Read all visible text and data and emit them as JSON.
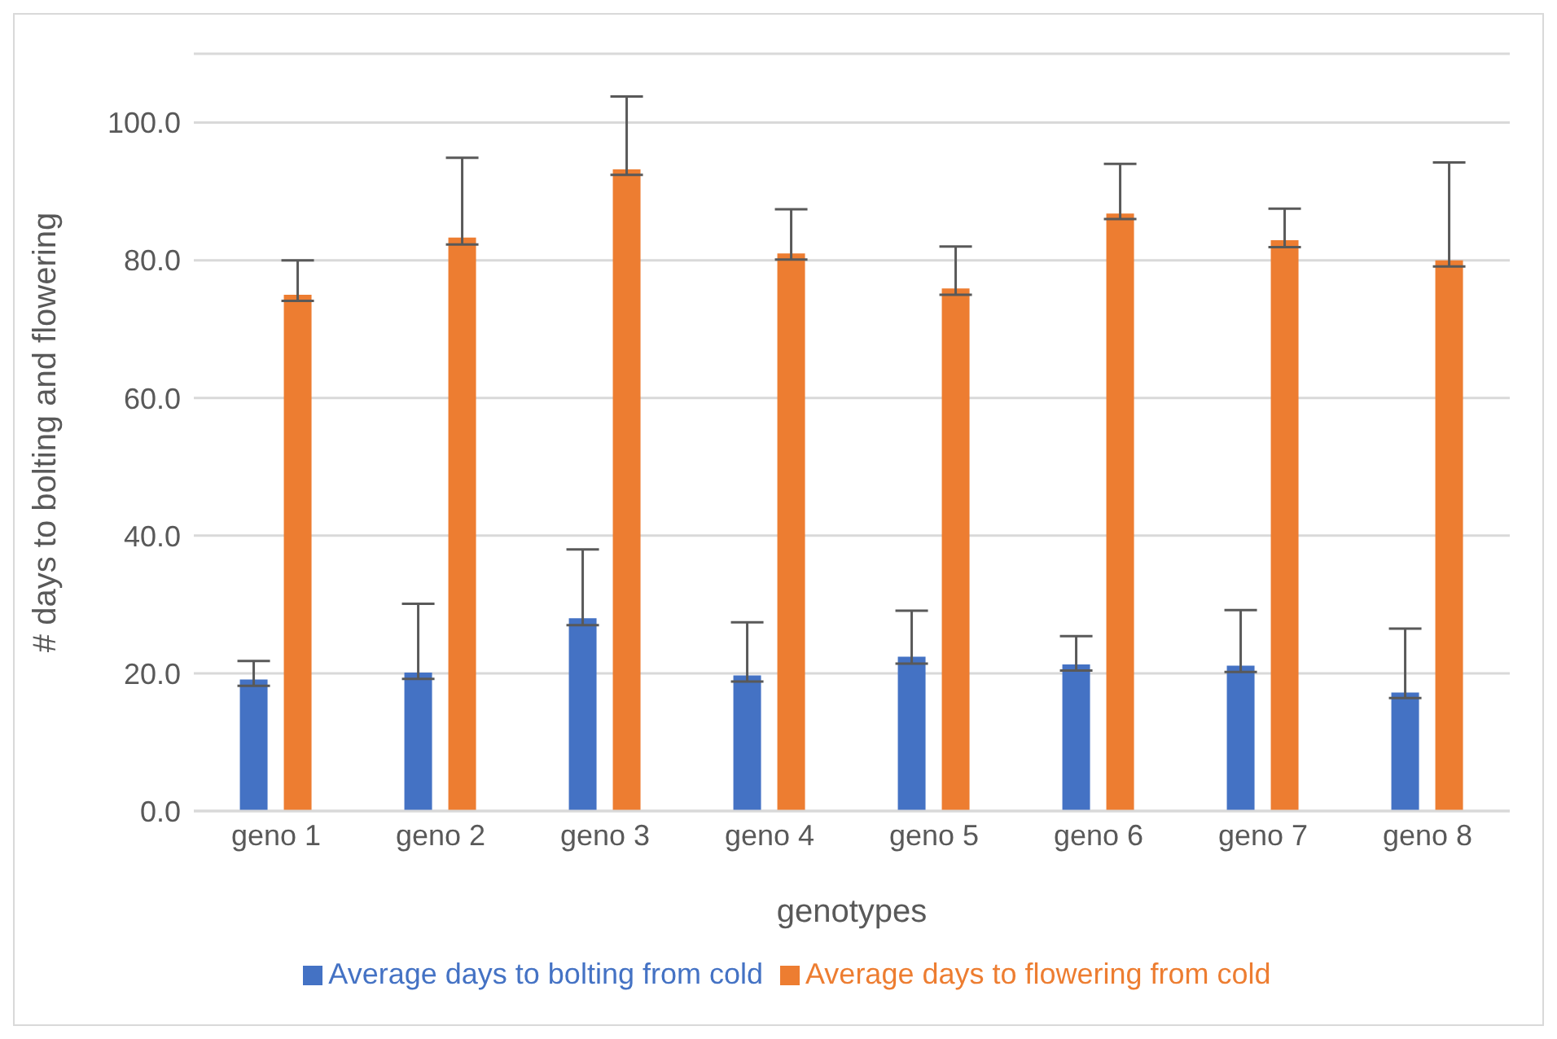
{
  "chart_data": {
    "type": "bar",
    "xlabel": "genotypes",
    "ylabel": "# days to bolting and flowering",
    "categories": [
      "geno 1",
      "geno 2",
      "geno 3",
      "geno 4",
      "geno 5",
      "geno 6",
      "geno 7",
      "geno 8"
    ],
    "series": [
      {
        "name": "Average days to bolting from cold",
        "color": "#4472c4",
        "values": [
          19.1,
          20.1,
          28.0,
          19.7,
          22.4,
          21.3,
          21.1,
          17.2
        ],
        "errors": [
          [
            18.2,
            21.8
          ],
          [
            19.2,
            30.1
          ],
          [
            27.0,
            38.0
          ],
          [
            18.8,
            27.4
          ],
          [
            21.4,
            29.1
          ],
          [
            20.4,
            25.4
          ],
          [
            20.2,
            29.2
          ],
          [
            16.4,
            26.5
          ]
        ]
      },
      {
        "name": "Average days to flowering from cold",
        "color": "#ed7d31",
        "values": [
          75.0,
          83.3,
          93.2,
          81.0,
          75.9,
          86.8,
          82.9,
          80.0
        ],
        "errors": [
          [
            74.1,
            80.0
          ],
          [
            82.3,
            94.9
          ],
          [
            92.4,
            103.8
          ],
          [
            80.1,
            87.4
          ],
          [
            75.0,
            82.0
          ],
          [
            86.0,
            94.0
          ],
          [
            81.9,
            87.5
          ],
          [
            79.1,
            94.2
          ]
        ]
      }
    ],
    "ylim": [
      0,
      110
    ],
    "yticks": [
      {
        "value": 0,
        "label": "0.0"
      },
      {
        "value": 20,
        "label": "20.0"
      },
      {
        "value": 40,
        "label": "40.0"
      },
      {
        "value": 60,
        "label": "60.0"
      },
      {
        "value": 80,
        "label": "80.0"
      },
      {
        "value": 100,
        "label": "100.0"
      }
    ],
    "grid": "y",
    "legend": "bottom"
  }
}
